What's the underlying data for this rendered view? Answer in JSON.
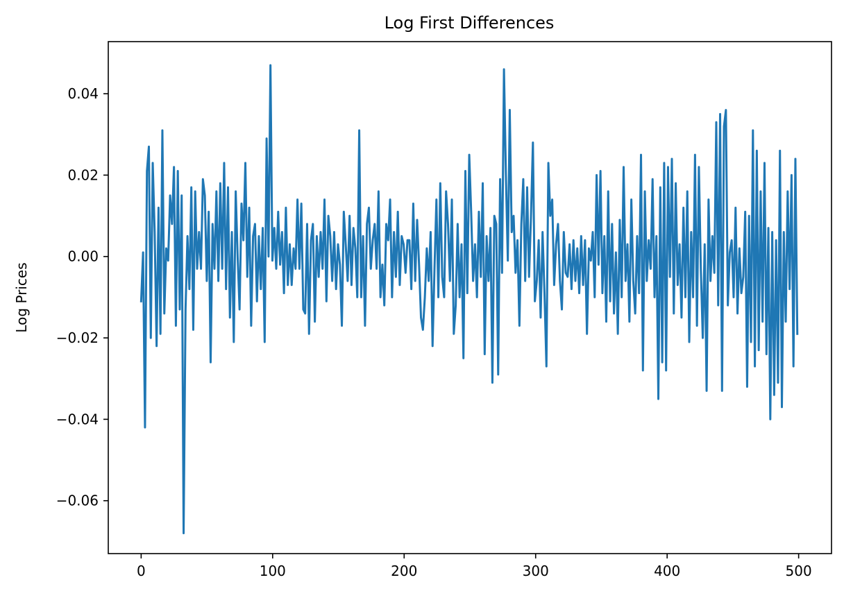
{
  "chart_data": {
    "type": "line",
    "title": "Log First Differences",
    "xlabel": "",
    "ylabel": "Log Prices",
    "xlim": [
      -25,
      525
    ],
    "ylim": [
      -0.073,
      0.0528
    ],
    "x_ticks": [
      0,
      100,
      200,
      300,
      400,
      500
    ],
    "x_tick_labels": [
      "0",
      "100",
      "200",
      "300",
      "400",
      "500"
    ],
    "y_ticks": [
      -0.06,
      -0.04,
      -0.02,
      0.0,
      0.02,
      0.04
    ],
    "y_tick_labels": [
      "−0.06",
      "−0.04",
      "−0.02",
      "0.00",
      "0.02",
      "0.04"
    ],
    "grid": false,
    "legend": "none",
    "colors": {
      "line": "#1f77b4",
      "axes": "#000000",
      "background": "#ffffff"
    },
    "series": [
      {
        "x_start": 0,
        "x_step": 1,
        "values": [
          -0.011,
          0.001,
          -0.042,
          0.021,
          0.027,
          -0.02,
          0.023,
          0.006,
          -0.022,
          0.012,
          -0.019,
          0.031,
          -0.014,
          0.002,
          -0.001,
          0.015,
          0.008,
          0.022,
          -0.017,
          0.021,
          -0.013,
          0.015,
          -0.068,
          -0.013,
          0.005,
          -0.008,
          0.017,
          -0.018,
          0.016,
          -0.003,
          0.006,
          -0.003,
          0.019,
          0.015,
          -0.006,
          0.011,
          -0.026,
          0.008,
          -0.003,
          0.016,
          -0.006,
          0.018,
          -0.003,
          0.023,
          -0.008,
          0.017,
          -0.015,
          0.006,
          -0.021,
          0.016,
          0.0,
          -0.013,
          0.013,
          0.004,
          0.023,
          -0.005,
          0.012,
          -0.017,
          0.005,
          0.008,
          -0.011,
          0.005,
          -0.008,
          0.007,
          -0.021,
          0.029,
          0.0,
          0.047,
          -0.001,
          0.007,
          -0.003,
          0.011,
          -0.002,
          0.006,
          -0.009,
          0.012,
          -0.007,
          0.003,
          -0.007,
          0.002,
          -0.003,
          0.014,
          -0.003,
          0.013,
          -0.013,
          -0.014,
          0.008,
          -0.019,
          0.004,
          0.008,
          -0.016,
          0.005,
          -0.005,
          0.006,
          -0.003,
          0.014,
          -0.011,
          0.01,
          0.005,
          -0.006,
          0.006,
          -0.008,
          0.003,
          -0.002,
          -0.017,
          0.011,
          0.003,
          -0.006,
          0.01,
          -0.007,
          0.007,
          0.002,
          -0.01,
          0.031,
          -0.01,
          0.005,
          -0.017,
          0.008,
          0.012,
          -0.003,
          0.004,
          0.008,
          -0.003,
          0.016,
          -0.01,
          -0.002,
          -0.012,
          0.008,
          0.004,
          0.014,
          -0.01,
          0.006,
          -0.005,
          0.011,
          -0.007,
          0.005,
          0.003,
          -0.004,
          0.004,
          0.004,
          -0.008,
          0.013,
          -0.006,
          0.009,
          -0.002,
          -0.015,
          -0.018,
          -0.01,
          0.002,
          -0.006,
          0.006,
          -0.022,
          -0.003,
          0.014,
          -0.01,
          0.018,
          -0.005,
          -0.01,
          0.016,
          0.008,
          -0.006,
          0.014,
          -0.019,
          -0.012,
          0.008,
          -0.01,
          0.003,
          -0.025,
          0.021,
          -0.009,
          0.025,
          0.011,
          -0.006,
          0.003,
          -0.01,
          0.011,
          -0.005,
          0.018,
          -0.024,
          0.005,
          -0.006,
          0.007,
          -0.031,
          0.01,
          0.008,
          -0.029,
          0.019,
          -0.004,
          0.046,
          0.02,
          -0.001,
          0.036,
          0.006,
          0.01,
          -0.004,
          0.004,
          -0.017,
          0.008,
          0.019,
          -0.006,
          0.017,
          -0.005,
          0.01,
          0.028,
          -0.011,
          -0.006,
          0.004,
          -0.015,
          0.006,
          -0.009,
          -0.027,
          0.023,
          0.01,
          0.014,
          -0.007,
          0.003,
          0.008,
          -0.006,
          -0.013,
          0.006,
          -0.004,
          -0.005,
          0.003,
          -0.008,
          0.004,
          -0.006,
          0.002,
          -0.009,
          0.005,
          -0.007,
          0.004,
          -0.019,
          0.002,
          -0.001,
          0.006,
          -0.01,
          0.02,
          -0.002,
          0.021,
          -0.009,
          0.005,
          -0.016,
          0.016,
          -0.011,
          0.008,
          -0.014,
          0.001,
          -0.019,
          0.009,
          -0.01,
          0.022,
          -0.006,
          0.003,
          -0.016,
          0.014,
          -0.006,
          -0.014,
          0.005,
          -0.009,
          0.025,
          -0.028,
          0.016,
          -0.006,
          0.004,
          -0.003,
          0.019,
          -0.01,
          0.005,
          -0.035,
          0.017,
          -0.026,
          0.023,
          -0.028,
          0.022,
          -0.005,
          0.024,
          -0.014,
          0.018,
          -0.007,
          0.003,
          -0.015,
          0.012,
          -0.01,
          0.016,
          -0.021,
          0.006,
          -0.01,
          0.025,
          -0.017,
          0.022,
          -0.003,
          -0.02,
          0.003,
          -0.033,
          0.014,
          -0.006,
          0.005,
          -0.004,
          0.033,
          -0.012,
          0.035,
          -0.033,
          0.032,
          0.036,
          -0.012,
          0.001,
          0.004,
          -0.01,
          0.012,
          -0.014,
          0.002,
          -0.009,
          -0.005,
          0.011,
          -0.032,
          0.01,
          -0.021,
          0.031,
          -0.027,
          0.026,
          -0.023,
          0.016,
          -0.016,
          0.023,
          -0.024,
          0.007,
          -0.04,
          0.006,
          -0.034,
          0.004,
          -0.031,
          0.026,
          -0.037,
          0.006,
          -0.016,
          0.016,
          -0.008,
          0.02,
          -0.027,
          0.024,
          -0.019
        ]
      }
    ]
  }
}
